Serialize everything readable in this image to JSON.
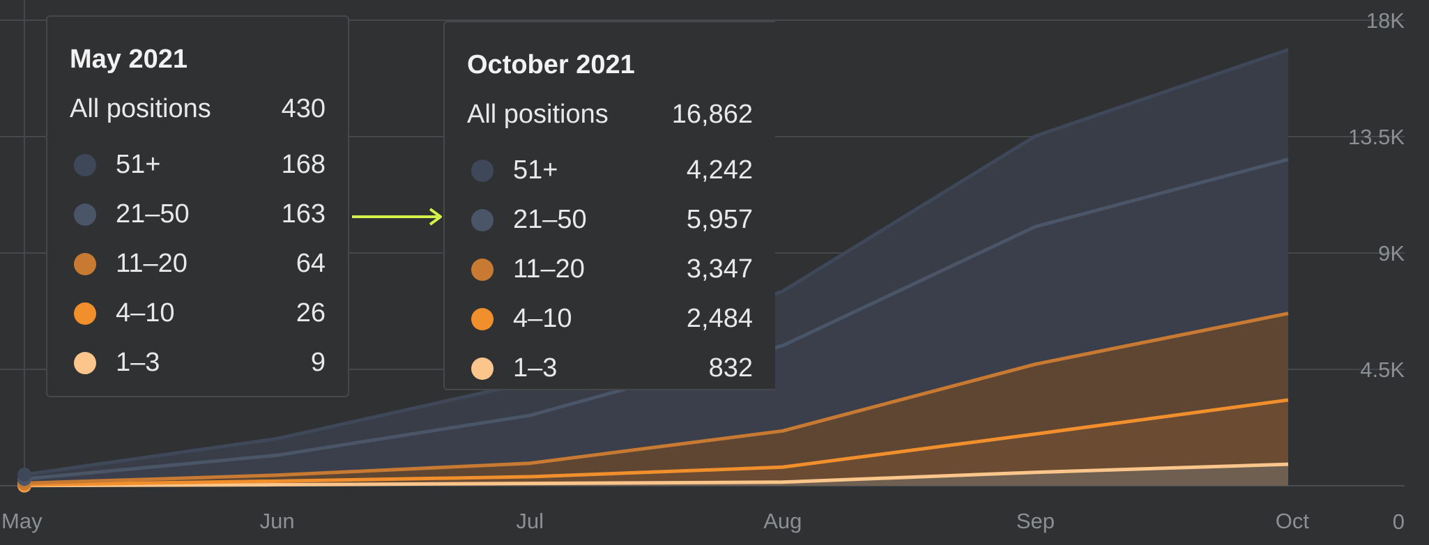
{
  "chart_data": {
    "type": "area",
    "stacked": true,
    "x": [
      "May",
      "Jun",
      "Jul",
      "Aug",
      "Sep",
      "Oct"
    ],
    "series": [
      {
        "name": "1–3",
        "color": "#fbc58b",
        "fill": "#6e5f50",
        "values": [
          9,
          40,
          90,
          140,
          520,
          832
        ]
      },
      {
        "name": "4–10",
        "color": "#f28f2d",
        "fill": "#6b4c32",
        "values": [
          26,
          140,
          260,
          580,
          1480,
          2484
        ]
      },
      {
        "name": "11–20",
        "color": "#c97a32",
        "fill": "#5e4633",
        "values": [
          64,
          230,
          520,
          1400,
          2700,
          3347
        ]
      },
      {
        "name": "21–50",
        "color": "#4a5568",
        "fill": "#3a3f4b",
        "values": [
          163,
          770,
          1850,
          3300,
          5320,
          5957
        ]
      },
      {
        "name": "51+",
        "color": "#3f4858",
        "fill": "#383d48",
        "values": [
          168,
          640,
          1280,
          2100,
          3500,
          4242
        ]
      }
    ],
    "y_ticks": [
      "18K",
      "13.5K",
      "9K",
      "4.5K",
      "0"
    ],
    "ylim": [
      0,
      18000
    ],
    "axis_position": "right",
    "grid": true
  },
  "tooltips": [
    {
      "title": "May 2021",
      "total_label": "All positions",
      "total_value": "430",
      "rows": [
        {
          "label": "51+",
          "value": "168",
          "color": "#3f4858"
        },
        {
          "label": "21–50",
          "value": "163",
          "color": "#4a5568"
        },
        {
          "label": "11–20",
          "value": "64",
          "color": "#c97a32"
        },
        {
          "label": "4–10",
          "value": "26",
          "color": "#f28f2d"
        },
        {
          "label": "1–3",
          "value": "9",
          "color": "#fbc58b"
        }
      ]
    },
    {
      "title": "October 2021",
      "total_label": "All positions",
      "total_value": "16,862",
      "rows": [
        {
          "label": "51+",
          "value": "4,242",
          "color": "#3f4858"
        },
        {
          "label": "21–50",
          "value": "5,957",
          "color": "#4a5568"
        },
        {
          "label": "11–20",
          "value": "3,347",
          "color": "#c97a32"
        },
        {
          "label": "4–10",
          "value": "2,484",
          "color": "#f28f2d"
        },
        {
          "label": "1–3",
          "value": "832",
          "color": "#fbc58b"
        }
      ]
    }
  ],
  "arrow_color": "#d6f04a"
}
